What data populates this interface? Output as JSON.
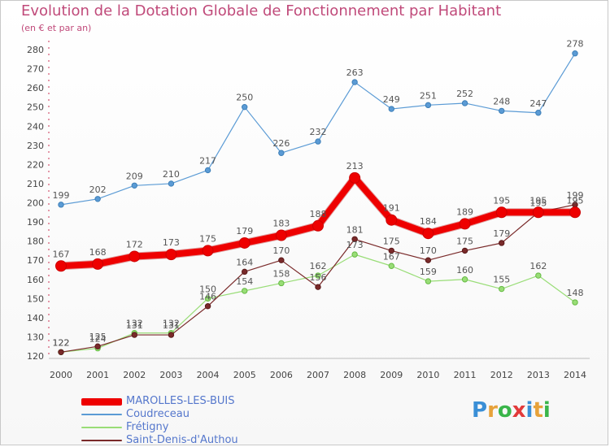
{
  "header": {
    "title": "Evolution de la Dotation Globale de Fonctionnement par Habitant",
    "subtitle": "(en € et par an)"
  },
  "logo": {
    "letters": [
      "P",
      "r",
      "o",
      "x",
      "i",
      "t",
      "i"
    ],
    "colors": [
      "#3a8fd6",
      "#e7a23a",
      "#3ab54a",
      "#e23a3a",
      "#3a8fd6",
      "#e7a23a",
      "#3ab54a"
    ]
  },
  "chart_data": {
    "type": "line",
    "title": "Evolution de la Dotation Globale de Fonctionnement par Habitant",
    "subtitle": "(en € et par an)",
    "x": [
      2000,
      2001,
      2002,
      2003,
      2004,
      2005,
      2006,
      2007,
      2008,
      2009,
      2010,
      2011,
      2012,
      2013,
      2014
    ],
    "xtick_labels": [
      "2000",
      "2001",
      "2002",
      "2003",
      "2004",
      "2005",
      "2006",
      "2007",
      "2008",
      "2009",
      "2010",
      "2011",
      "2012",
      "2013",
      "2014"
    ],
    "ylim": [
      120,
      280
    ],
    "yticks": [
      120,
      130,
      140,
      150,
      160,
      170,
      180,
      190,
      200,
      210,
      220,
      230,
      240,
      250,
      260,
      270,
      280
    ],
    "grid": false,
    "legend_position": "bottom-left",
    "series": [
      {
        "name": "MAROLLES-LES-BUIS",
        "color": "#ee0000",
        "width": 8,
        "values": [
          167,
          168,
          172,
          173,
          175,
          179,
          183,
          188,
          213,
          191,
          184,
          189,
          195,
          195,
          195
        ]
      },
      {
        "name": "Coudreceau",
        "color": "#5b9bd5",
        "width": 1.2,
        "values": [
          199,
          202,
          209,
          210,
          217,
          250,
          226,
          232,
          263,
          249,
          251,
          252,
          248,
          247,
          278
        ]
      },
      {
        "name": "Frétigny",
        "color": "#99dd77",
        "width": 1.2,
        "values": [
          122,
          124,
          132,
          132,
          150,
          154,
          158,
          162,
          173,
          167,
          159,
          160,
          155,
          162,
          148
        ]
      },
      {
        "name": "Saint-Denis-d'Authou",
        "color": "#7a2a2a",
        "width": 1.2,
        "values": [
          122,
          125,
          131,
          131,
          146,
          164,
          170,
          156,
          181,
          175,
          170,
          175,
          179,
          195,
          199
        ]
      }
    ]
  }
}
